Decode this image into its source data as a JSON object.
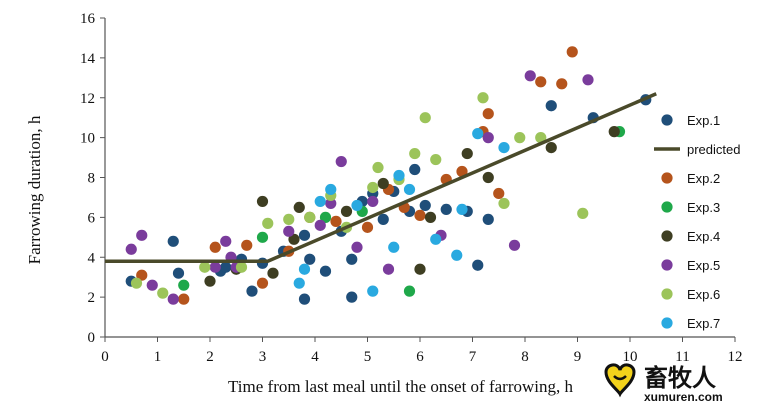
{
  "chart_data": {
    "type": "scatter",
    "title": "",
    "xlabel": "Time from last meal until the onset of farrowing, h",
    "ylabel": "Farrowing duration, h",
    "xlim": [
      0,
      12
    ],
    "ylim": [
      0,
      16
    ],
    "xticks": [
      "0",
      "1",
      "2",
      "3",
      "4",
      "5",
      "6",
      "7",
      "8",
      "9",
      "10",
      "11",
      "12"
    ],
    "yticks": [
      "0",
      "2",
      "4",
      "6",
      "8",
      "10",
      "12",
      "14",
      "16"
    ],
    "grid": false,
    "legend_position": "right",
    "series": [
      {
        "name": "Exp.1",
        "kind": "points",
        "color": "#1f4e79",
        "points": [
          [
            0.5,
            2.8
          ],
          [
            1.3,
            4.8
          ],
          [
            1.4,
            3.2
          ],
          [
            2.2,
            3.3
          ],
          [
            2.3,
            3.5
          ],
          [
            2.6,
            3.9
          ],
          [
            2.8,
            2.3
          ],
          [
            3.0,
            3.7
          ],
          [
            3.4,
            4.3
          ],
          [
            3.8,
            5.1
          ],
          [
            3.9,
            3.9
          ],
          [
            3.8,
            1.9
          ],
          [
            4.2,
            3.3
          ],
          [
            4.5,
            5.3
          ],
          [
            4.7,
            3.9
          ],
          [
            4.7,
            2.0
          ],
          [
            4.9,
            6.8
          ],
          [
            5.1,
            7.2
          ],
          [
            5.3,
            5.9
          ],
          [
            5.5,
            7.3
          ],
          [
            5.8,
            6.3
          ],
          [
            5.9,
            8.4
          ],
          [
            6.1,
            6.6
          ],
          [
            6.5,
            6.4
          ],
          [
            6.9,
            6.3
          ],
          [
            7.1,
            3.6
          ],
          [
            7.3,
            5.9
          ],
          [
            8.5,
            11.6
          ],
          [
            9.3,
            11.0
          ],
          [
            10.3,
            11.9
          ]
        ]
      },
      {
        "name": "predicted",
        "kind": "line",
        "color": "#4a4a2a",
        "points": [
          [
            0,
            3.8
          ],
          [
            3.1,
            3.8
          ],
          [
            10.5,
            12.2
          ]
        ]
      },
      {
        "name": "Exp.2",
        "kind": "points",
        "color": "#b5541c",
        "points": [
          [
            0.7,
            3.1
          ],
          [
            1.5,
            1.9
          ],
          [
            2.1,
            4.5
          ],
          [
            2.7,
            4.6
          ],
          [
            3.0,
            2.7
          ],
          [
            3.5,
            4.3
          ],
          [
            3.9,
            6.0
          ],
          [
            4.4,
            5.8
          ],
          [
            5.0,
            5.5
          ],
          [
            5.4,
            7.4
          ],
          [
            5.7,
            6.5
          ],
          [
            6.0,
            6.1
          ],
          [
            6.5,
            7.9
          ],
          [
            6.8,
            8.3
          ],
          [
            7.2,
            10.3
          ],
          [
            7.3,
            11.2
          ],
          [
            7.5,
            7.2
          ],
          [
            8.3,
            12.8
          ],
          [
            8.7,
            12.7
          ],
          [
            8.9,
            14.3
          ]
        ]
      },
      {
        "name": "Exp.3",
        "kind": "points",
        "color": "#1fa84a",
        "points": [
          [
            1.5,
            2.6
          ],
          [
            3.0,
            5.0
          ],
          [
            4.2,
            6.0
          ],
          [
            4.9,
            6.3
          ],
          [
            5.8,
            2.3
          ],
          [
            9.8,
            10.3
          ]
        ]
      },
      {
        "name": "Exp.4",
        "kind": "points",
        "color": "#3e3e22",
        "points": [
          [
            2.0,
            2.8
          ],
          [
            2.5,
            3.4
          ],
          [
            3.0,
            6.8
          ],
          [
            3.2,
            3.2
          ],
          [
            3.6,
            4.9
          ],
          [
            3.7,
            6.5
          ],
          [
            4.6,
            6.3
          ],
          [
            5.3,
            7.7
          ],
          [
            6.0,
            3.4
          ],
          [
            6.2,
            6.0
          ],
          [
            6.9,
            9.2
          ],
          [
            7.3,
            8.0
          ],
          [
            8.5,
            9.5
          ],
          [
            9.7,
            10.3
          ]
        ]
      },
      {
        "name": "Exp.5",
        "kind": "points",
        "color": "#7a3c9c",
        "points": [
          [
            0.5,
            4.4
          ],
          [
            0.7,
            5.1
          ],
          [
            0.9,
            2.6
          ],
          [
            1.3,
            1.9
          ],
          [
            2.1,
            3.5
          ],
          [
            2.3,
            4.8
          ],
          [
            2.4,
            4.0
          ],
          [
            2.5,
            3.5
          ],
          [
            3.5,
            5.3
          ],
          [
            4.1,
            5.6
          ],
          [
            4.3,
            6.7
          ],
          [
            4.5,
            8.8
          ],
          [
            4.8,
            4.5
          ],
          [
            5.1,
            6.8
          ],
          [
            5.4,
            3.4
          ],
          [
            6.4,
            5.1
          ],
          [
            7.3,
            10.0
          ],
          [
            7.8,
            4.6
          ],
          [
            8.1,
            13.1
          ],
          [
            9.2,
            12.9
          ]
        ]
      },
      {
        "name": "Exp.6",
        "kind": "points",
        "color": "#9cc45a",
        "points": [
          [
            0.6,
            2.7
          ],
          [
            1.1,
            2.2
          ],
          [
            1.9,
            3.5
          ],
          [
            2.6,
            3.5
          ],
          [
            3.1,
            5.7
          ],
          [
            3.5,
            5.9
          ],
          [
            3.9,
            6.0
          ],
          [
            4.3,
            7.1
          ],
          [
            4.6,
            5.5
          ],
          [
            5.1,
            7.5
          ],
          [
            5.2,
            8.5
          ],
          [
            5.6,
            7.9
          ],
          [
            6.1,
            11.0
          ],
          [
            6.3,
            8.9
          ],
          [
            7.2,
            12.0
          ],
          [
            7.6,
            6.7
          ],
          [
            7.9,
            10.0
          ],
          [
            8.3,
            10.0
          ],
          [
            9.1,
            6.2
          ],
          [
            5.9,
            9.2
          ]
        ]
      },
      {
        "name": "Exp.7",
        "kind": "points",
        "color": "#29a9e0",
        "points": [
          [
            3.7,
            2.7
          ],
          [
            3.8,
            3.4
          ],
          [
            4.1,
            6.8
          ],
          [
            4.3,
            7.4
          ],
          [
            4.8,
            6.6
          ],
          [
            5.1,
            2.3
          ],
          [
            5.5,
            4.5
          ],
          [
            5.6,
            8.1
          ],
          [
            6.3,
            4.9
          ],
          [
            6.7,
            4.1
          ],
          [
            6.8,
            6.4
          ],
          [
            7.1,
            10.2
          ],
          [
            7.6,
            9.5
          ],
          [
            5.8,
            7.4
          ]
        ]
      }
    ]
  },
  "watermark": {
    "chinese_text": "畜牧人",
    "url": "xumuren.com"
  }
}
